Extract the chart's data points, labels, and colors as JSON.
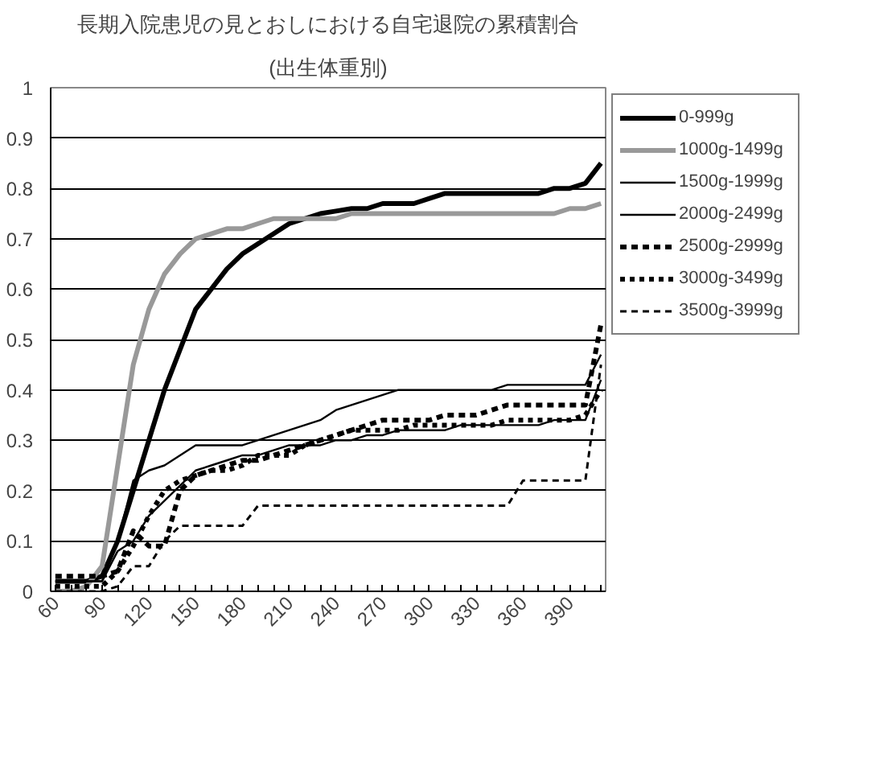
{
  "chart_data": {
    "type": "line",
    "title": "長期入院患児の見とおしにおける自宅退院の累積割合",
    "subtitle": "(出生体重別)",
    "categories": [
      "60",
      null,
      null,
      "90",
      null,
      null,
      "120",
      null,
      null,
      "150",
      null,
      null,
      "180",
      null,
      null,
      "210",
      null,
      null,
      "240",
      null,
      null,
      "270",
      null,
      null,
      "300",
      null,
      null,
      "330",
      null,
      null,
      "360",
      null,
      null,
      "390",
      null,
      null
    ],
    "series": [
      {
        "name": "0-999g",
        "color": "#000000",
        "line_style": "solid",
        "values": [
          0.02,
          0.02,
          0.02,
          0.03,
          0.1,
          0.2,
          0.3,
          0.4,
          0.48,
          0.56,
          0.6,
          0.64,
          0.67,
          0.69,
          0.71,
          0.73,
          0.74,
          0.75,
          0.755,
          0.76,
          0.76,
          0.77,
          0.77,
          0.77,
          0.78,
          0.79,
          0.79,
          0.79,
          0.79,
          0.79,
          0.79,
          0.79,
          0.8,
          0.8,
          0.81,
          0.85
        ]
      },
      {
        "name": "1000g-1499g",
        "color": "#999999",
        "line_style": "solid",
        "values": [
          0,
          0,
          0.01,
          0.05,
          0.25,
          0.45,
          0.56,
          0.63,
          0.67,
          0.7,
          0.71,
          0.72,
          0.72,
          0.73,
          0.74,
          0.74,
          0.74,
          0.74,
          0.74,
          0.75,
          0.75,
          0.75,
          0.75,
          0.75,
          0.75,
          0.75,
          0.75,
          0.75,
          0.75,
          0.75,
          0.75,
          0.75,
          0.75,
          0.76,
          0.76,
          0.77
        ]
      },
      {
        "name": "1500g-1999g",
        "color": "#000000",
        "line_style": "solid",
        "values": [
          0.02,
          0.02,
          0.02,
          0.02,
          0.1,
          0.22,
          0.24,
          0.25,
          0.27,
          0.29,
          0.29,
          0.29,
          0.29,
          0.3,
          0.31,
          0.32,
          0.33,
          0.34,
          0.36,
          0.37,
          0.38,
          0.39,
          0.4,
          0.4,
          0.4,
          0.4,
          0.4,
          0.4,
          0.4,
          0.41,
          0.41,
          0.41,
          0.41,
          0.41,
          0.41,
          0.47
        ]
      },
      {
        "name": "2000g-2499g",
        "color": "#000000",
        "line_style": "solid",
        "values": [
          0.02,
          0.02,
          0.02,
          0.02,
          0.08,
          0.1,
          0.15,
          0.18,
          0.21,
          0.24,
          0.25,
          0.26,
          0.27,
          0.27,
          0.28,
          0.29,
          0.29,
          0.29,
          0.3,
          0.3,
          0.31,
          0.31,
          0.32,
          0.32,
          0.32,
          0.32,
          0.33,
          0.33,
          0.33,
          0.33,
          0.33,
          0.33,
          0.34,
          0.34,
          0.34,
          0.42
        ]
      },
      {
        "name": "2500g-2999g",
        "color": "#000000",
        "line_style": "dashed",
        "values": [
          0.03,
          0.03,
          0.03,
          0.03,
          0.04,
          0.12,
          0.09,
          0.09,
          0.2,
          0.23,
          0.24,
          0.25,
          0.26,
          0.26,
          0.27,
          0.28,
          0.29,
          0.3,
          0.31,
          0.32,
          0.33,
          0.34,
          0.34,
          0.34,
          0.34,
          0.35,
          0.35,
          0.35,
          0.36,
          0.37,
          0.37,
          0.37,
          0.37,
          0.37,
          0.37,
          0.53
        ]
      },
      {
        "name": "3000g-3499g",
        "color": "#000000",
        "line_style": "dotted",
        "values": [
          0.01,
          0.01,
          0.01,
          0.01,
          0.04,
          0.09,
          0.15,
          0.2,
          0.22,
          0.23,
          0.24,
          0.24,
          0.25,
          0.27,
          0.27,
          0.27,
          0.29,
          0.3,
          0.31,
          0.32,
          0.32,
          0.32,
          0.32,
          0.33,
          0.33,
          0.33,
          0.33,
          0.33,
          0.33,
          0.34,
          0.34,
          0.34,
          0.34,
          0.34,
          0.35,
          0.4
        ]
      },
      {
        "name": "3500g-3999g",
        "color": "#000000",
        "line_style": "dashed",
        "values": [
          0,
          0,
          0,
          0,
          0.01,
          0.05,
          0.05,
          0.1,
          0.13,
          0.13,
          0.13,
          0.13,
          0.13,
          0.17,
          0.17,
          0.17,
          0.17,
          0.17,
          0.17,
          0.17,
          0.17,
          0.17,
          0.17,
          0.17,
          0.17,
          0.17,
          0.17,
          0.17,
          0.17,
          0.17,
          0.22,
          0.22,
          0.22,
          0.22,
          0.22,
          0.45
        ]
      }
    ],
    "ylim": [
      0,
      1
    ],
    "yticks": [
      0,
      0.1,
      0.2,
      0.3,
      0.4,
      0.5,
      0.6,
      0.7,
      0.8,
      0.9,
      1
    ],
    "grid": "y",
    "legend": "right"
  }
}
